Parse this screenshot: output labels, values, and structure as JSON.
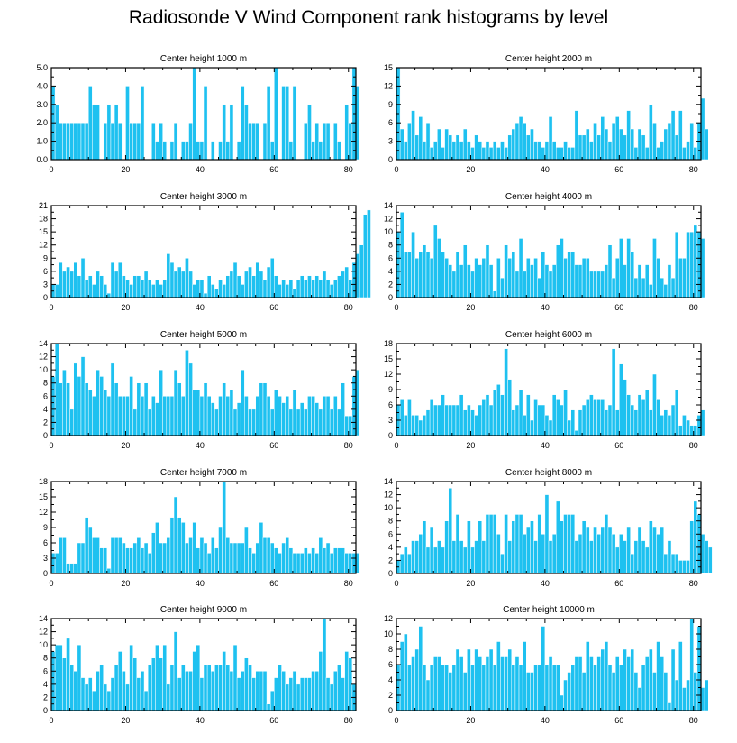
{
  "title": "Radiosonde V Wind Component rank histograms by level",
  "bar_color": "#1ec1f0",
  "bar_edge_color": "#ffffff",
  "chart_data": [
    {
      "type": "bar",
      "title": "Center height 1000 m",
      "xlim": [
        0,
        82
      ],
      "ylim": [
        0,
        5
      ],
      "xticks": [
        0,
        20,
        40,
        60,
        80
      ],
      "yticks": [
        0,
        1,
        2,
        3,
        4,
        5
      ],
      "ytick_labels": [
        "0.0",
        "1.0",
        "2.0",
        "3.0",
        "4.0",
        "5.0"
      ],
      "values": [
        4,
        3,
        2,
        2,
        2,
        2,
        2,
        2,
        2,
        2,
        4,
        3,
        3,
        0,
        2,
        3,
        2,
        3,
        2,
        0,
        4,
        2,
        2,
        2,
        4,
        0,
        0,
        2,
        1,
        2,
        1,
        0,
        1,
        2,
        0,
        1,
        1,
        2,
        5,
        1,
        1,
        4,
        0,
        1,
        0,
        1,
        3,
        1,
        3,
        0,
        1,
        4,
        3,
        2,
        2,
        2,
        0,
        2,
        4,
        1,
        5,
        0,
        4,
        4,
        1,
        4,
        0,
        0,
        2,
        3,
        1,
        2,
        1,
        2,
        2,
        0,
        2,
        1,
        0,
        3,
        2,
        5,
        4
      ]
    },
    {
      "type": "bar",
      "title": "Center height 2000 m",
      "xlim": [
        0,
        82
      ],
      "ylim": [
        0,
        15
      ],
      "xticks": [
        0,
        20,
        40,
        60,
        80
      ],
      "yticks": [
        0,
        3,
        6,
        9,
        12,
        15
      ],
      "ytick_labels": [
        "0",
        "3",
        "6",
        "9",
        "12",
        "15"
      ],
      "values": [
        15,
        5,
        3,
        6,
        8,
        4,
        7,
        3,
        6,
        2,
        3,
        5,
        2,
        5,
        4,
        3,
        4,
        3,
        5,
        3,
        2,
        4,
        3,
        2,
        3,
        2,
        3,
        2,
        3,
        2,
        4,
        5,
        6,
        7,
        6,
        4,
        5,
        3,
        3,
        2,
        3,
        7,
        3,
        2,
        2,
        3,
        2,
        2,
        8,
        4,
        4,
        5,
        3,
        6,
        4,
        7,
        5,
        3,
        6,
        7,
        5,
        4,
        8,
        5,
        2,
        5,
        4,
        2,
        9,
        6,
        2,
        3,
        5,
        6,
        8,
        4,
        8,
        2,
        3,
        6,
        2,
        6,
        10,
        5
      ]
    },
    {
      "type": "bar",
      "title": "Center height 3000 m",
      "xlim": [
        0,
        82
      ],
      "ylim": [
        0,
        21
      ],
      "xticks": [
        0,
        20,
        40,
        60,
        80
      ],
      "yticks": [
        0,
        3,
        6,
        9,
        12,
        15,
        18,
        21
      ],
      "ytick_labels": [
        "0",
        "3",
        "6",
        "9",
        "12",
        "15",
        "18",
        "21"
      ],
      "values": [
        3,
        3,
        8,
        6,
        7,
        6,
        8,
        5,
        9,
        4,
        5,
        3,
        6,
        5,
        3,
        1,
        8,
        6,
        8,
        5,
        4,
        3,
        5,
        5,
        4,
        6,
        4,
        3,
        4,
        3,
        4,
        10,
        8,
        6,
        7,
        6,
        9,
        6,
        3,
        4,
        4,
        1,
        5,
        3,
        2,
        4,
        3,
        5,
        6,
        8,
        5,
        3,
        6,
        7,
        5,
        8,
        6,
        4,
        7,
        9,
        5,
        3,
        4,
        3,
        4,
        2,
        4,
        5,
        4,
        5,
        4,
        5,
        4,
        6,
        4,
        3,
        4,
        5,
        6,
        7,
        4,
        8,
        10,
        12,
        19,
        20
      ]
    },
    {
      "type": "bar",
      "title": "Center height 4000 m",
      "xlim": [
        0,
        82
      ],
      "ylim": [
        0,
        14
      ],
      "xticks": [
        0,
        20,
        40,
        60,
        80
      ],
      "yticks": [
        0,
        2,
        4,
        6,
        8,
        10,
        12,
        14
      ],
      "ytick_labels": [
        "0",
        "2",
        "4",
        "6",
        "8",
        "10",
        "12",
        "14"
      ],
      "values": [
        10,
        13,
        7,
        7,
        10,
        6,
        7,
        8,
        7,
        6,
        11,
        9,
        7,
        6,
        5,
        4,
        7,
        5,
        8,
        5,
        4,
        6,
        5,
        6,
        8,
        5,
        1,
        6,
        3,
        8,
        6,
        7,
        4,
        9,
        4,
        6,
        5,
        6,
        3,
        7,
        5,
        4,
        5,
        8,
        9,
        6,
        7,
        7,
        5,
        5,
        6,
        6,
        4,
        4,
        4,
        4,
        5,
        8,
        3,
        6,
        9,
        5,
        9,
        7,
        3,
        5,
        3,
        5,
        2,
        9,
        6,
        3,
        2,
        5,
        3,
        10,
        6,
        6,
        10,
        10,
        11,
        10,
        9
      ]
    },
    {
      "type": "bar",
      "title": "Center height 5000 m",
      "xlim": [
        0,
        82
      ],
      "ylim": [
        0,
        14
      ],
      "xticks": [
        0,
        20,
        40,
        60,
        80
      ],
      "yticks": [
        0,
        2,
        4,
        6,
        8,
        10,
        12,
        14
      ],
      "ytick_labels": [
        "0",
        "2",
        "4",
        "6",
        "8",
        "10",
        "12",
        "14"
      ],
      "values": [
        9,
        14,
        8,
        10,
        8,
        4,
        11,
        9,
        12,
        8,
        7,
        6,
        10,
        9,
        7,
        6,
        11,
        8,
        6,
        6,
        6,
        9,
        4,
        8,
        6,
        8,
        4,
        6,
        5,
        10,
        6,
        6,
        6,
        10,
        8,
        6,
        13,
        11,
        7,
        7,
        6,
        8,
        6,
        5,
        4,
        6,
        8,
        6,
        7,
        4,
        5,
        10,
        6,
        4,
        4,
        6,
        8,
        8,
        6,
        4,
        7,
        6,
        5,
        6,
        4,
        7,
        4,
        5,
        4,
        6,
        6,
        5,
        4,
        6,
        6,
        4,
        6,
        4,
        8,
        3,
        3,
        9,
        10
      ]
    },
    {
      "type": "bar",
      "title": "Center height 6000 m",
      "xlim": [
        0,
        82
      ],
      "ylim": [
        0,
        18
      ],
      "xticks": [
        0,
        20,
        40,
        60,
        80
      ],
      "yticks": [
        0,
        3,
        6,
        9,
        12,
        15,
        18
      ],
      "ytick_labels": [
        "0",
        "3",
        "6",
        "9",
        "12",
        "15",
        "18"
      ],
      "values": [
        6,
        7,
        4,
        7,
        4,
        4,
        3,
        4,
        5,
        7,
        6,
        6,
        8,
        6,
        6,
        6,
        6,
        8,
        5,
        6,
        5,
        4,
        6,
        7,
        8,
        6,
        9,
        10,
        8,
        17,
        11,
        5,
        6,
        9,
        4,
        8,
        3,
        7,
        6,
        6,
        4,
        3,
        8,
        7,
        6,
        9,
        3,
        5,
        1,
        5,
        6,
        7,
        8,
        7,
        7,
        7,
        5,
        6,
        17,
        5,
        14,
        11,
        8,
        6,
        5,
        8,
        7,
        9,
        5,
        12,
        7,
        4,
        5,
        4,
        6,
        9,
        2,
        4,
        3,
        2,
        2,
        4,
        5
      ]
    },
    {
      "type": "bar",
      "title": "Center height 7000 m",
      "xlim": [
        0,
        82
      ],
      "ylim": [
        0,
        18
      ],
      "xticks": [
        0,
        20,
        40,
        60,
        80
      ],
      "yticks": [
        0,
        3,
        6,
        9,
        12,
        15,
        18
      ],
      "ytick_labels": [
        "0",
        "3",
        "6",
        "9",
        "12",
        "15",
        "18"
      ],
      "values": [
        4,
        4,
        7,
        7,
        2,
        2,
        2,
        6,
        6,
        11,
        9,
        7,
        7,
        5,
        5,
        1,
        7,
        7,
        7,
        6,
        5,
        5,
        6,
        7,
        5,
        6,
        4,
        8,
        10,
        6,
        6,
        7,
        11,
        15,
        11,
        10,
        6,
        7,
        10,
        5,
        7,
        6,
        4,
        7,
        5,
        9,
        18,
        7,
        6,
        6,
        6,
        6,
        9,
        5,
        4,
        6,
        10,
        7,
        7,
        6,
        5,
        4,
        6,
        7,
        5,
        4,
        4,
        4,
        5,
        4,
        5,
        4,
        7,
        5,
        6,
        4,
        5,
        5,
        5,
        4,
        4,
        4,
        4
      ]
    },
    {
      "type": "bar",
      "title": "Center height 8000 m",
      "xlim": [
        0,
        82
      ],
      "ylim": [
        0,
        14
      ],
      "xticks": [
        0,
        20,
        40,
        60,
        80
      ],
      "yticks": [
        0,
        2,
        4,
        6,
        8,
        10,
        12,
        14
      ],
      "ytick_labels": [
        "0",
        "2",
        "4",
        "6",
        "8",
        "10",
        "12",
        "14"
      ],
      "values": [
        2,
        3,
        4,
        3,
        5,
        5,
        6,
        8,
        4,
        7,
        4,
        5,
        4,
        8,
        13,
        5,
        9,
        5,
        4,
        8,
        4,
        5,
        8,
        5,
        9,
        9,
        9,
        6,
        3,
        9,
        5,
        8,
        9,
        9,
        6,
        7,
        8,
        5,
        9,
        6,
        12,
        5,
        6,
        11,
        8,
        9,
        9,
        9,
        5,
        6,
        8,
        7,
        5,
        7,
        6,
        7,
        9,
        7,
        6,
        4,
        6,
        5,
        7,
        3,
        5,
        7,
        5,
        4,
        8,
        7,
        6,
        7,
        3,
        5,
        3,
        3,
        2,
        2,
        2,
        8,
        11,
        9,
        6,
        5,
        4
      ]
    },
    {
      "type": "bar",
      "title": "Center height 9000 m",
      "xlim": [
        0,
        82
      ],
      "ylim": [
        0,
        14
      ],
      "xticks": [
        0,
        20,
        40,
        60,
        80
      ],
      "yticks": [
        0,
        2,
        4,
        6,
        8,
        10,
        12,
        14
      ],
      "ytick_labels": [
        "0",
        "2",
        "4",
        "6",
        "8",
        "10",
        "12",
        "14"
      ],
      "values": [
        9,
        10,
        10,
        8,
        11,
        7,
        6,
        10,
        5,
        4,
        5,
        3,
        6,
        7,
        4,
        3,
        5,
        7,
        9,
        6,
        4,
        10,
        8,
        5,
        6,
        3,
        7,
        8,
        10,
        8,
        10,
        4,
        7,
        12,
        5,
        7,
        6,
        6,
        9,
        10,
        5,
        7,
        7,
        6,
        7,
        7,
        9,
        7,
        6,
        10,
        5,
        6,
        8,
        7,
        5,
        6,
        6,
        6,
        1,
        3,
        5,
        7,
        6,
        4,
        5,
        6,
        4,
        5,
        5,
        5,
        6,
        6,
        9,
        14,
        5,
        4,
        6,
        7,
        5,
        9,
        8,
        4
      ]
    },
    {
      "type": "bar",
      "title": "Center height 10000 m",
      "xlim": [
        0,
        82
      ],
      "ylim": [
        0,
        12
      ],
      "xticks": [
        0,
        20,
        40,
        60,
        80
      ],
      "yticks": [
        0,
        2,
        4,
        6,
        8,
        10,
        12
      ],
      "ytick_labels": [
        "0",
        "2",
        "4",
        "6",
        "8",
        "10",
        "12"
      ],
      "values": [
        6,
        9,
        10,
        6,
        7,
        8,
        11,
        6,
        4,
        6,
        7,
        7,
        6,
        6,
        5,
        6,
        8,
        7,
        5,
        8,
        6,
        8,
        7,
        6,
        7,
        8,
        6,
        9,
        7,
        7,
        8,
        6,
        7,
        6,
        9,
        5,
        5,
        6,
        6,
        11,
        6,
        7,
        6,
        6,
        2,
        4,
        5,
        6,
        7,
        7,
        5,
        9,
        7,
        6,
        7,
        8,
        9,
        6,
        5,
        7,
        6,
        8,
        7,
        8,
        5,
        3,
        6,
        7,
        8,
        5,
        9,
        7,
        5,
        1,
        8,
        4,
        9,
        3,
        4,
        12,
        5,
        11,
        3,
        4
      ]
    }
  ]
}
